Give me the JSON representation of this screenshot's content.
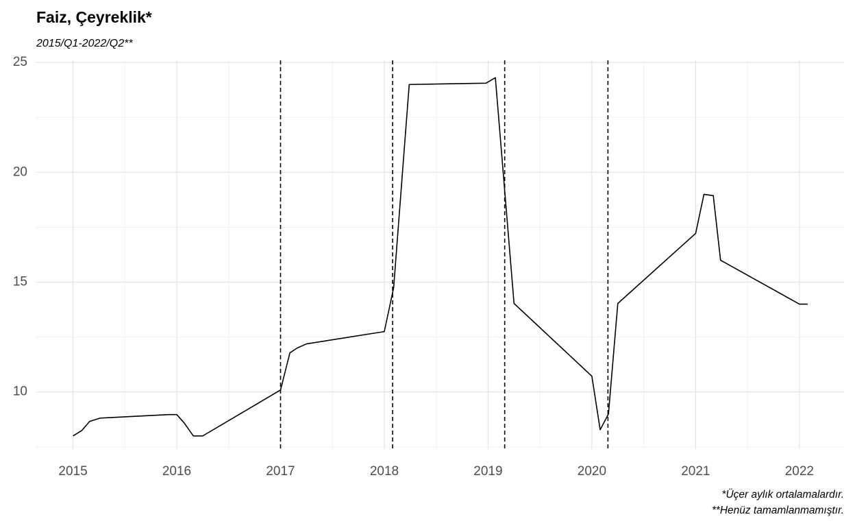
{
  "chart_data": {
    "type": "line",
    "title": "Faiz, Çeyreklik*",
    "subtitle": "2015/Q1-2022/Q2**",
    "notes": [
      "*Üçer aylık ortalamalardır.",
      "**Henüz tamamlanmamıştır."
    ],
    "x": [
      2015.0,
      2015.086,
      2015.16,
      2015.26,
      2015.92,
      2016.0,
      2016.07,
      2016.16,
      2016.25,
      2017.0,
      2017.09,
      2017.16,
      2017.25,
      2018.0,
      2018.09,
      2018.24,
      2018.98,
      2019.07,
      2019.25,
      2020.0,
      2020.08,
      2020.16,
      2020.25,
      2021.0,
      2021.08,
      2021.17,
      2021.24,
      2022.0,
      2022.08
    ],
    "values": [
      8.0,
      8.25,
      8.66,
      8.81,
      8.97,
      8.97,
      8.6,
      8.0,
      8.0,
      10.09,
      11.78,
      12.0,
      12.19,
      12.75,
      14.75,
      24.0,
      24.06,
      24.31,
      14.03,
      10.72,
      8.28,
      9.0,
      14.03,
      17.22,
      19.0,
      18.94,
      16.0,
      14.0,
      14.0
    ],
    "color": "#000000",
    "vlines": [
      2017.0,
      2018.08,
      2019.16,
      2020.155
    ],
    "xlim": [
      2014.64,
      2022.43
    ],
    "xticks": [
      2015,
      2016,
      2017,
      2018,
      2019,
      2020,
      2021,
      2022
    ],
    "ylim": [
      7.4,
      25.1
    ],
    "yticks": [
      10,
      15,
      20,
      25
    ],
    "grid": true
  }
}
